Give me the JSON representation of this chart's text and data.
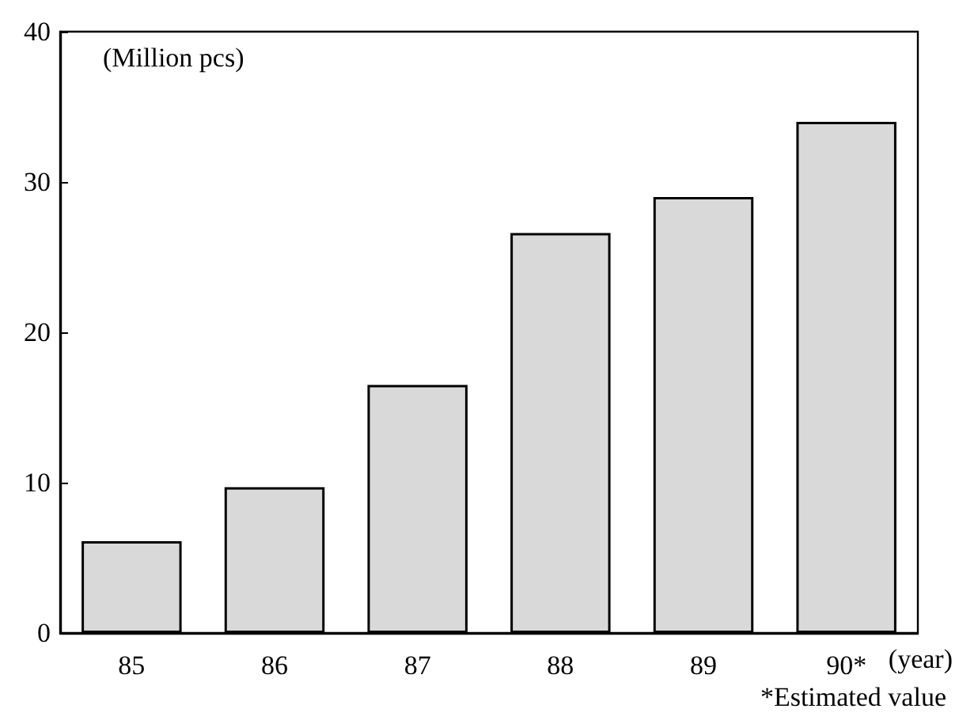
{
  "chart_data": {
    "type": "bar",
    "ylabel": "(Million pcs)",
    "xlabel": "(year)",
    "categories": [
      "85",
      "86",
      "87",
      "88",
      "89",
      "90*"
    ],
    "values": [
      6.1,
      9.7,
      16.5,
      26.6,
      29.0,
      34.0
    ],
    "color": "#d9d9d9",
    "ylim": [
      0,
      40
    ],
    "yticks": [
      0,
      10,
      20,
      30,
      40
    ],
    "grid": false,
    "annotations": [
      "*Estimated value"
    ]
  }
}
